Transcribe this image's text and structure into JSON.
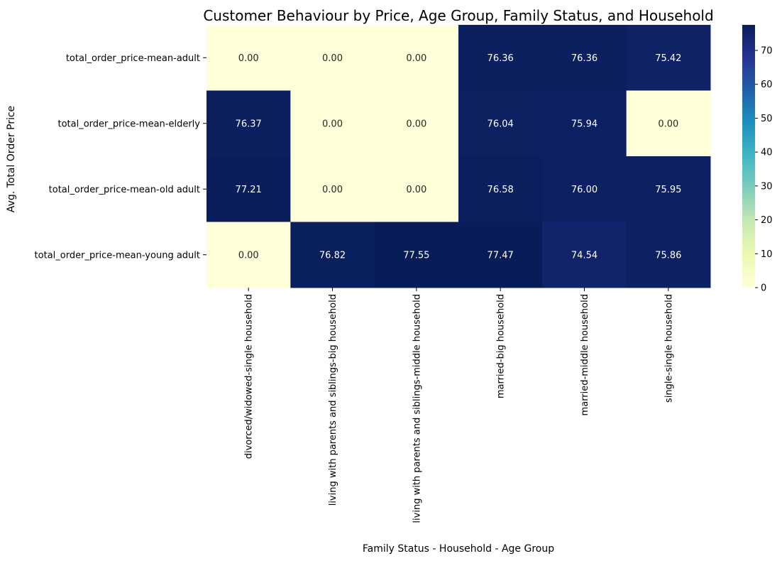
{
  "chart_data": {
    "type": "heatmap",
    "title": "Customer Behaviour by Price, Age Group, Family Status, and Household",
    "xlabel": "Family Status - Household - Age Group",
    "ylabel": "Avg. Total Order Price",
    "rows": [
      "total_order_price-mean-adult",
      "total_order_price-mean-elderly",
      "total_order_price-mean-old adult",
      "total_order_price-mean-young adult"
    ],
    "columns": [
      "divorced/widowed-single household",
      "living with parents and siblings-big household",
      "living with parents and siblings-middle household",
      "married-big household",
      "married-middle household",
      "single-single household"
    ],
    "values": [
      [
        0.0,
        0.0,
        0.0,
        76.36,
        76.36,
        75.42
      ],
      [
        76.37,
        0.0,
        0.0,
        76.04,
        75.94,
        0.0
      ],
      [
        77.21,
        0.0,
        0.0,
        76.58,
        76.0,
        75.95
      ],
      [
        0.0,
        76.82,
        77.55,
        77.47,
        74.54,
        75.86
      ]
    ],
    "value_format": "0.00",
    "colormap": "YlGnBu",
    "colorbar": {
      "range": [
        0,
        77.55
      ],
      "ticks": [
        "0",
        "10",
        "20",
        "30",
        "40",
        "50",
        "60",
        "70"
      ]
    }
  }
}
